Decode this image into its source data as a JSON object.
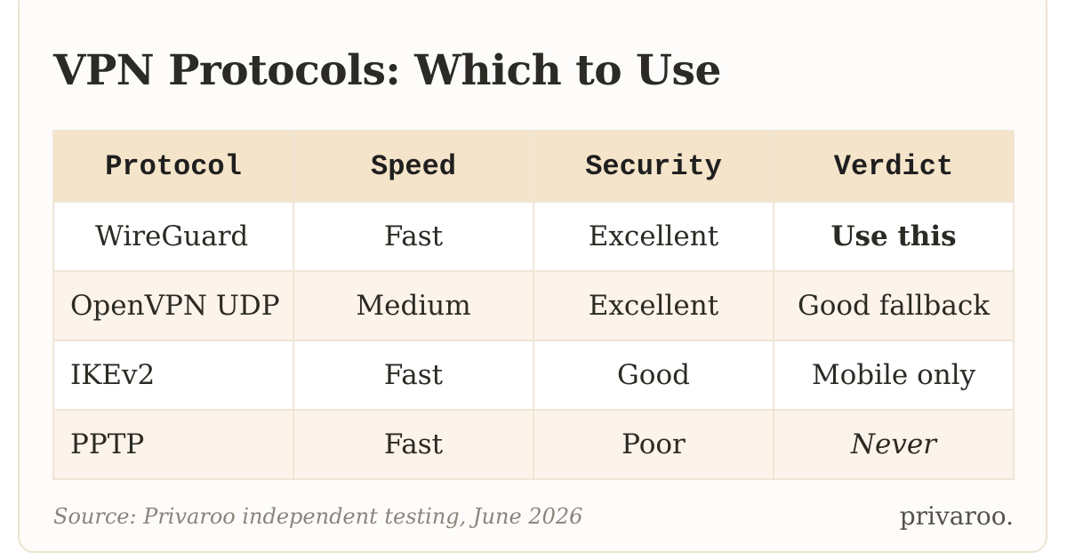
{
  "title": "VPN Protocols: Which to Use",
  "table": {
    "headers": [
      "Protocol",
      "Speed",
      "Security",
      "Verdict"
    ],
    "rows": [
      {
        "protocol": "WireGuard",
        "speed": "Fast",
        "security": "Excellent",
        "verdict": "Use this"
      },
      {
        "protocol": "OpenVPN UDP",
        "speed": "Medium",
        "security": "Excellent",
        "verdict": "Good fallback"
      },
      {
        "protocol": "IKEv2",
        "speed": "Fast",
        "security": "Good",
        "verdict": "Mobile only"
      },
      {
        "protocol": "PPTP",
        "speed": "Fast",
        "security": "Poor",
        "verdict": "Never"
      }
    ]
  },
  "colors": {
    "header_bg": "#f4e4c9",
    "accent": "#a33a2b",
    "alt_row_bg": "#fcf4ea"
  },
  "source": "Source: Privaroo independent testing, June 2026",
  "brand": "privaroo."
}
